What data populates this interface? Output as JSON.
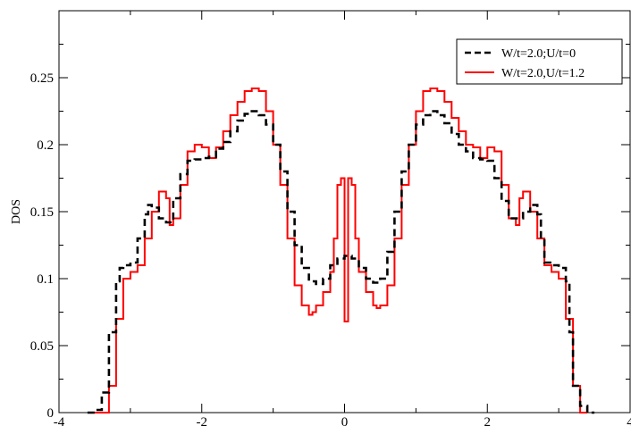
{
  "chart_data": {
    "type": "line",
    "title": "",
    "xlabel": "",
    "ylabel": "DOS",
    "xlim": [
      -4,
      4
    ],
    "ylim": [
      0,
      0.3
    ],
    "xticks": [
      -4,
      -2,
      0,
      2,
      4
    ],
    "xtick_labels": [
      "-4",
      "-2",
      "0",
      "2",
      "4"
    ],
    "yticks": [
      0,
      0.05,
      0.1,
      0.15,
      0.2,
      0.25
    ],
    "ytick_labels": [
      "0",
      "0.05",
      "0.1",
      "0.15",
      "0.2",
      "0.25"
    ],
    "grid": false,
    "legend_position": "top-right",
    "series": [
      {
        "name": "W/t=2.0;U/t=0",
        "color": "#000000",
        "style": "dashed",
        "x": [
          -3.6,
          -3.5,
          -3.4,
          -3.3,
          -3.2,
          -3.15,
          -3.1,
          -3.0,
          -2.9,
          -2.8,
          -2.75,
          -2.7,
          -2.6,
          -2.5,
          -2.4,
          -2.3,
          -2.2,
          -2.1,
          -2.0,
          -1.9,
          -1.8,
          -1.7,
          -1.6,
          -1.5,
          -1.4,
          -1.3,
          -1.2,
          -1.1,
          -1.0,
          -0.9,
          -0.8,
          -0.7,
          -0.6,
          -0.5,
          -0.4,
          -0.3,
          -0.2,
          -0.1,
          0.0,
          0.1,
          0.2,
          0.3,
          0.4,
          0.5,
          0.6,
          0.7,
          0.8,
          0.9,
          1.0,
          1.1,
          1.2,
          1.3,
          1.4,
          1.5,
          1.6,
          1.7,
          1.8,
          1.9,
          2.0,
          2.1,
          2.2,
          2.3,
          2.4,
          2.5,
          2.6,
          2.7,
          2.75,
          2.8,
          2.9,
          3.0,
          3.1,
          3.15,
          3.2,
          3.3,
          3.4,
          3.5
        ],
        "y": [
          0.0,
          0.002,
          0.015,
          0.06,
          0.098,
          0.108,
          0.11,
          0.112,
          0.13,
          0.148,
          0.155,
          0.153,
          0.145,
          0.142,
          0.16,
          0.178,
          0.188,
          0.189,
          0.19,
          0.191,
          0.197,
          0.202,
          0.21,
          0.218,
          0.223,
          0.225,
          0.222,
          0.215,
          0.2,
          0.18,
          0.15,
          0.125,
          0.108,
          0.098,
          0.096,
          0.1,
          0.11,
          0.115,
          0.117,
          0.115,
          0.108,
          0.1,
          0.097,
          0.1,
          0.12,
          0.15,
          0.18,
          0.2,
          0.215,
          0.222,
          0.225,
          0.222,
          0.216,
          0.208,
          0.2,
          0.195,
          0.19,
          0.189,
          0.188,
          0.175,
          0.158,
          0.145,
          0.145,
          0.15,
          0.155,
          0.148,
          0.13,
          0.112,
          0.11,
          0.108,
          0.098,
          0.06,
          0.02,
          0.005,
          0.0,
          0.0
        ]
      },
      {
        "name": "W/t=2.0,U/t=1.2",
        "color": "#ff0000",
        "style": "solid",
        "x": [
          -3.5,
          -3.4,
          -3.3,
          -3.2,
          -3.1,
          -3.0,
          -2.9,
          -2.8,
          -2.7,
          -2.6,
          -2.5,
          -2.45,
          -2.4,
          -2.3,
          -2.2,
          -2.1,
          -2.0,
          -1.9,
          -1.8,
          -1.7,
          -1.6,
          -1.5,
          -1.4,
          -1.3,
          -1.2,
          -1.1,
          -1.0,
          -0.9,
          -0.8,
          -0.7,
          -0.6,
          -0.5,
          -0.45,
          -0.4,
          -0.3,
          -0.2,
          -0.15,
          -0.1,
          -0.05,
          0.0,
          0.05,
          0.1,
          0.15,
          0.2,
          0.3,
          0.4,
          0.45,
          0.5,
          0.6,
          0.7,
          0.8,
          0.9,
          1.0,
          1.1,
          1.2,
          1.3,
          1.4,
          1.5,
          1.6,
          1.7,
          1.8,
          1.9,
          2.0,
          2.1,
          2.2,
          2.3,
          2.4,
          2.45,
          2.5,
          2.6,
          2.7,
          2.8,
          2.9,
          3.0,
          3.1,
          3.2,
          3.3,
          3.4
        ],
        "y": [
          0.0,
          0.0,
          0.02,
          0.07,
          0.1,
          0.105,
          0.11,
          0.13,
          0.15,
          0.165,
          0.16,
          0.14,
          0.145,
          0.17,
          0.195,
          0.2,
          0.198,
          0.19,
          0.198,
          0.21,
          0.222,
          0.232,
          0.24,
          0.242,
          0.24,
          0.225,
          0.2,
          0.17,
          0.13,
          0.095,
          0.08,
          0.073,
          0.075,
          0.08,
          0.09,
          0.105,
          0.13,
          0.17,
          0.175,
          0.068,
          0.175,
          0.17,
          0.13,
          0.105,
          0.09,
          0.08,
          0.078,
          0.08,
          0.095,
          0.13,
          0.17,
          0.2,
          0.225,
          0.24,
          0.242,
          0.24,
          0.232,
          0.22,
          0.21,
          0.2,
          0.198,
          0.19,
          0.198,
          0.195,
          0.17,
          0.145,
          0.14,
          0.16,
          0.165,
          0.15,
          0.13,
          0.11,
          0.105,
          0.1,
          0.07,
          0.02,
          0.0,
          0.0
        ]
      }
    ]
  }
}
